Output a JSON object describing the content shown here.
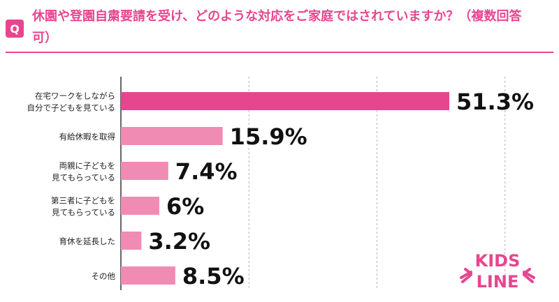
{
  "header": {
    "badge": "Q",
    "question": "休園や登園自粛要請を受け、どのような対応をご家庭ではされていますか？（複数回答可）"
  },
  "colors": {
    "accent": "#e8458f",
    "bar_primary": "#e8458f",
    "bar_secondary": "#f08bb4"
  },
  "chart_data": {
    "type": "bar",
    "orientation": "horizontal",
    "categories": [
      "在宅ワークをしながら\n自分で子どもを見ている",
      "有給休暇を取得",
      "両親に子どもを\n見てもらっている",
      "第三者に子どもを\n見てもらっている",
      "育休を延長した",
      "その他"
    ],
    "values": [
      51.3,
      15.9,
      7.4,
      6,
      3.2,
      8.5
    ],
    "value_labels": [
      "51.3%",
      "15.9%",
      "7.4%",
      "6%",
      "3.2%",
      "8.5%"
    ],
    "xlim": [
      0,
      60
    ],
    "grid": true,
    "legend": "none"
  },
  "logo": {
    "line1": "KIDS",
    "line2": "LINE"
  }
}
